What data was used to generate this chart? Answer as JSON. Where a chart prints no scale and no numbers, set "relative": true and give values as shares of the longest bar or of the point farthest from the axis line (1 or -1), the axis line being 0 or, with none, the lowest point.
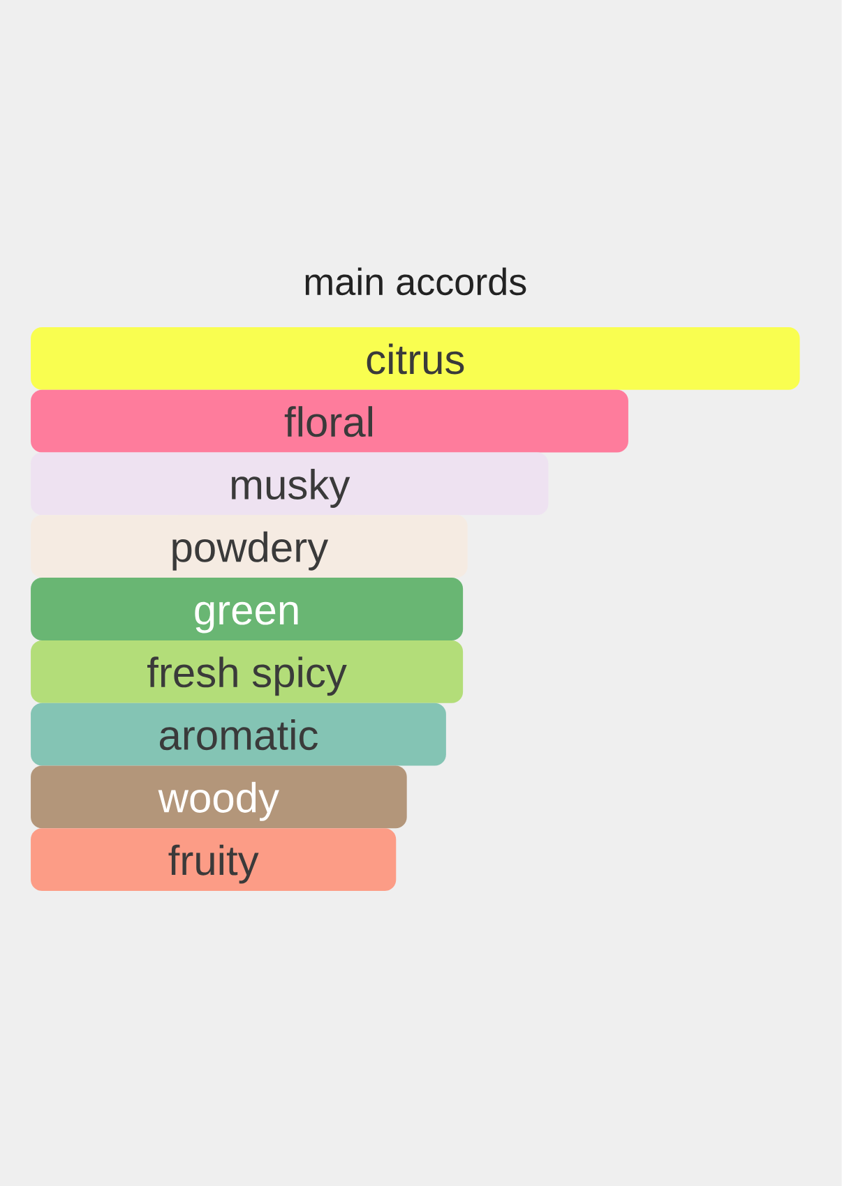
{
  "chart_data": {
    "type": "bar",
    "orientation": "horizontal",
    "relative": true,
    "title": "main accords",
    "categories": [
      "citrus",
      "floral",
      "musky",
      "powdery",
      "green",
      "fresh spicy",
      "aromatic",
      "woody",
      "fruity"
    ],
    "values": [
      1,
      0.777,
      0.673,
      0.568,
      0.562,
      0.562,
      0.54,
      0.489,
      0.475
    ],
    "colors": [
      "#f9fe50",
      "#fe7c9c",
      "#eee2f1",
      "#f5ebe2",
      "#69b673",
      "#b3dd79",
      "#84c4b4",
      "#b3967a",
      "#fc9c86"
    ]
  }
}
